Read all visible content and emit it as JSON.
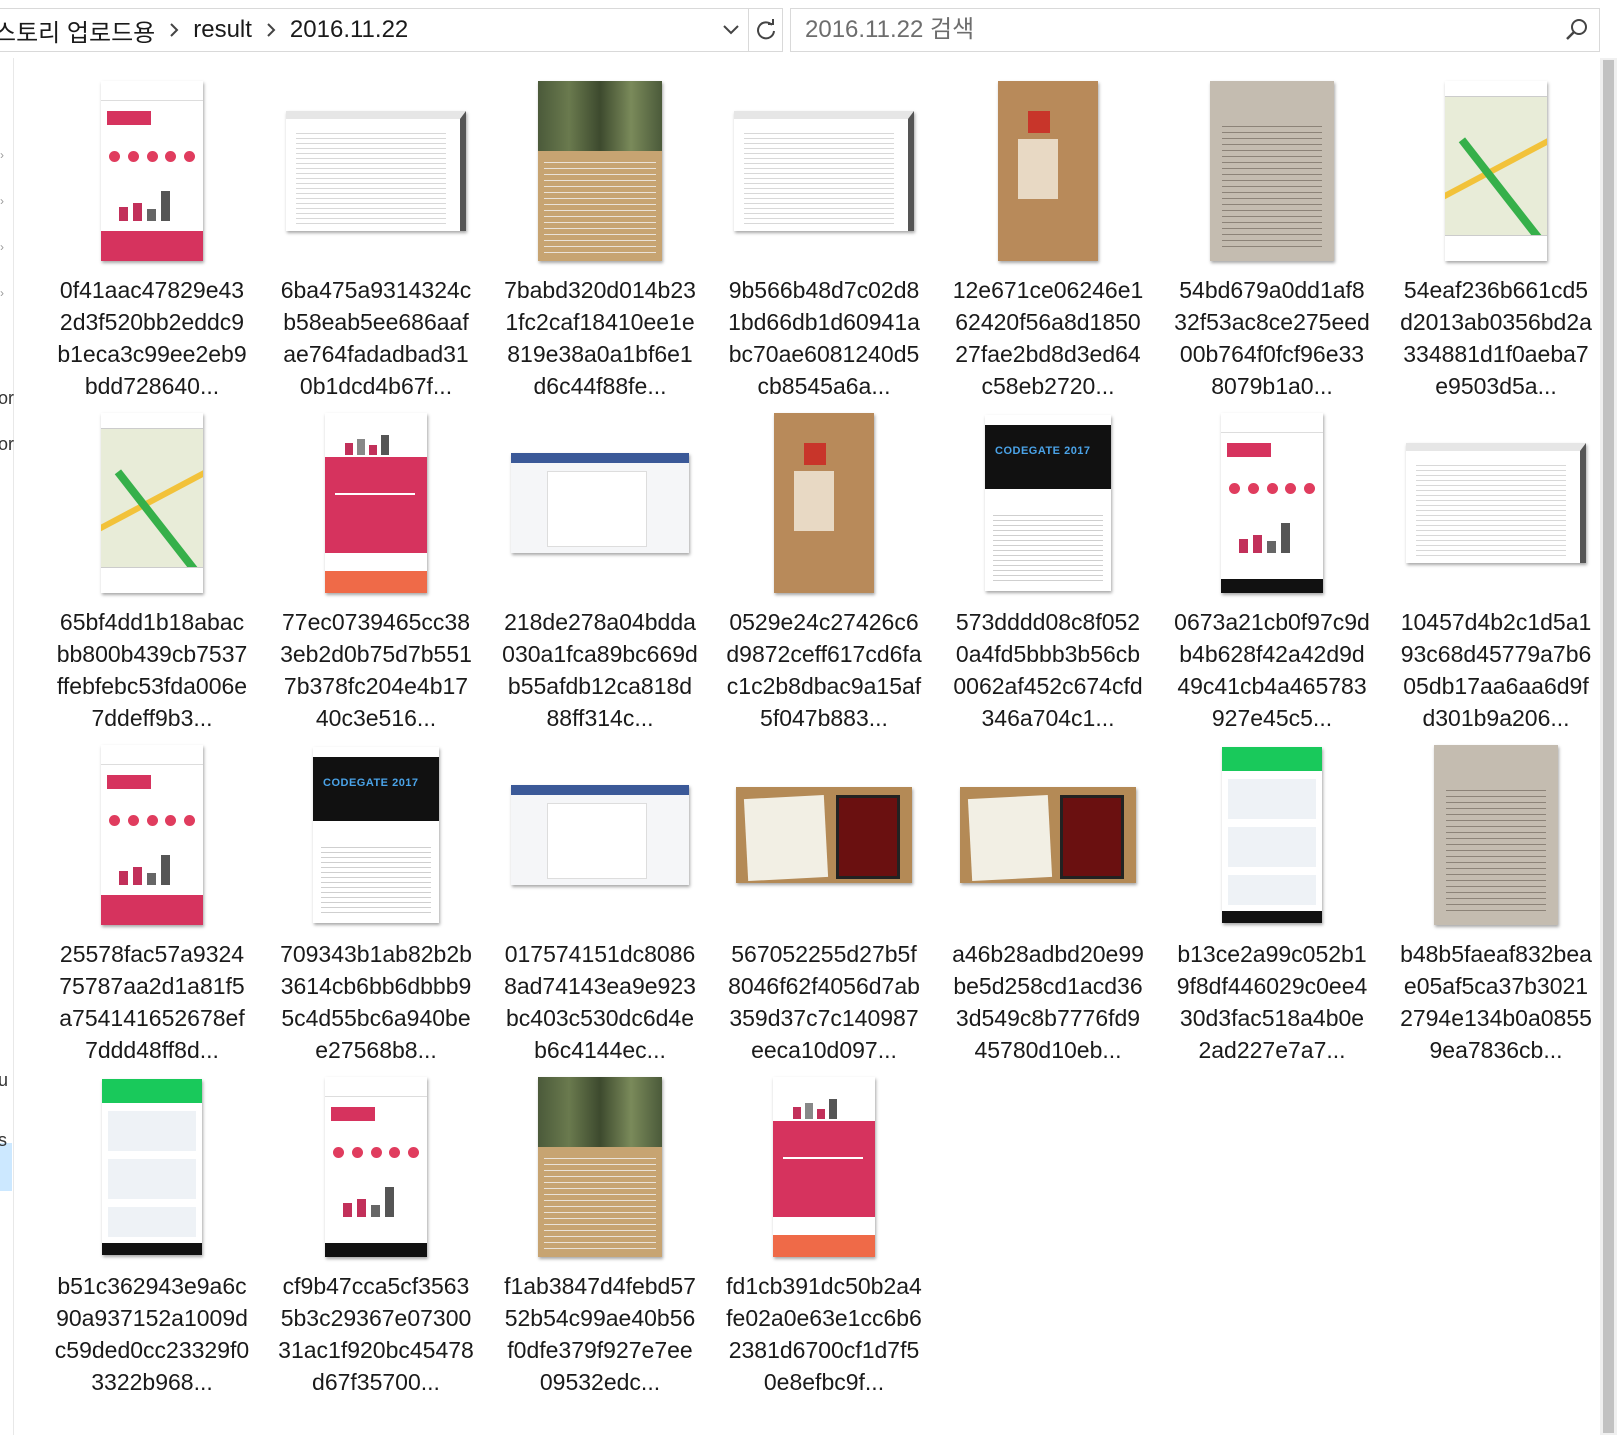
{
  "address_bar": {
    "breadcrumbs": [
      "스토리 업로드용",
      "result",
      "2016.11.22"
    ]
  },
  "search": {
    "placeholder": "2016.11.22 검색"
  },
  "nav_fragments": [
    "or",
    "or",
    "u",
    "s"
  ],
  "files": [
    {
      "name": "0f41aac47829e432d3f520bb2eddc9b1eca3c99ee2eb9bdd728640...",
      "thumb": "phone-app"
    },
    {
      "name": "6ba475a9314324cb58eab5ee686aafae764fadadbad310b1dcd4b67f...",
      "thumb": "doc-wide"
    },
    {
      "name": "7babd320d014b231fc2caf18410ee1e819e38a0a1bf6e1d6c44f88fe...",
      "thumb": "poster"
    },
    {
      "name": "9b566b48d7c02d81bd66db1d60941abc70ae6081240d5cb8545a6a...",
      "thumb": "doc-wide"
    },
    {
      "name": "12e671ce06246e162420f56a8d185027fae2bd8d3ed64c58eb2720...",
      "thumb": "box"
    },
    {
      "name": "54bd679a0dd1af832f53ac8ce275eed00b764f0fcf96e338079b1a0...",
      "thumb": "book"
    },
    {
      "name": "54eaf236b661cd5d2013ab0356bd2a334881d1f0aeba7e9503d5a...",
      "thumb": "phone-map"
    },
    {
      "name": "65bf4dd1b18abacbb800b439cb7537ffebfebc53fda006e7ddeff9b3...",
      "thumb": "phone-map"
    },
    {
      "name": "77ec0739465cc383eb2d0b75d7b5517b378fc204e4b1740c3e516...",
      "thumb": "phone-pink"
    },
    {
      "name": "218de278a04bdda030a1fca89bc669db55afdb12ca818d88ff314c...",
      "thumb": "web-fb"
    },
    {
      "name": "0529e24c27426c6d9872ceff617cd6fac1c2b8dbac9a15af5f047b883...",
      "thumb": "box"
    },
    {
      "name": "573dddd08c8f0520a4fd5bbb3b56cb0062af452c674cfd346a704c1...",
      "thumb": "codegate"
    },
    {
      "name": "0673a21cb0f97c9db4b628f42a42d9d49c41cb4a465783927e45c5...",
      "thumb": "phone-app-nav"
    },
    {
      "name": "10457d4b2c1d5a193c68d45779a7b605db17aa6aa6d9fd301b9a206...",
      "thumb": "doc-wide"
    },
    {
      "name": "25578fac57a932475787aa2d1a81f5a754141652678ef7ddd48ff8d...",
      "thumb": "phone-app"
    },
    {
      "name": "709343b1ab82b2b3614cb6bb6dbbb95c4d55bc6a940bee27568b8...",
      "thumb": "codegate"
    },
    {
      "name": "017574151dc80868ad74143ea9e923bc403c530dc6d4eb6c4144ec...",
      "thumb": "web-fb"
    },
    {
      "name": "567052255d27b5f8046f62f4056d7ab359d37c7c140987eeca10d097...",
      "thumb": "plaque"
    },
    {
      "name": "a46b28adbd20e99be5d258cd1acd363d549c8b7776fd945780d10eb...",
      "thumb": "plaque"
    },
    {
      "name": "b13ce2a99c052b19f8df446029c0ee430d3fac518a4b0e2ad227e7a7...",
      "thumb": "phone-shop"
    },
    {
      "name": "b48b5faeaf832beae05af5ca37b30212794e134b0a08559ea7836cb...",
      "thumb": "book"
    },
    {
      "name": "b51c362943e9a6c90a937152a1009dc59ded0cc23329f03322b968...",
      "thumb": "phone-shop"
    },
    {
      "name": "cf9b47cca5cf35635b3c29367e0730031ac1f920bc45478d67f35700...",
      "thumb": "phone-app-nav"
    },
    {
      "name": "f1ab3847d4febd5752b54c99ae40b56f0dfe379f927e7ee09532edc...",
      "thumb": "poster"
    },
    {
      "name": "fd1cb391dc50b2a4fe02a0e63e1cc6b62381d6700cf1d7f50e8efbc9f...",
      "thumb": "phone-pink"
    }
  ],
  "thumb_text": {
    "codegate": "CODEGATE 2017"
  },
  "colors": {
    "app_pink": "#d6335e",
    "selection": "#cce8ff",
    "border": "#d9d9d9"
  }
}
